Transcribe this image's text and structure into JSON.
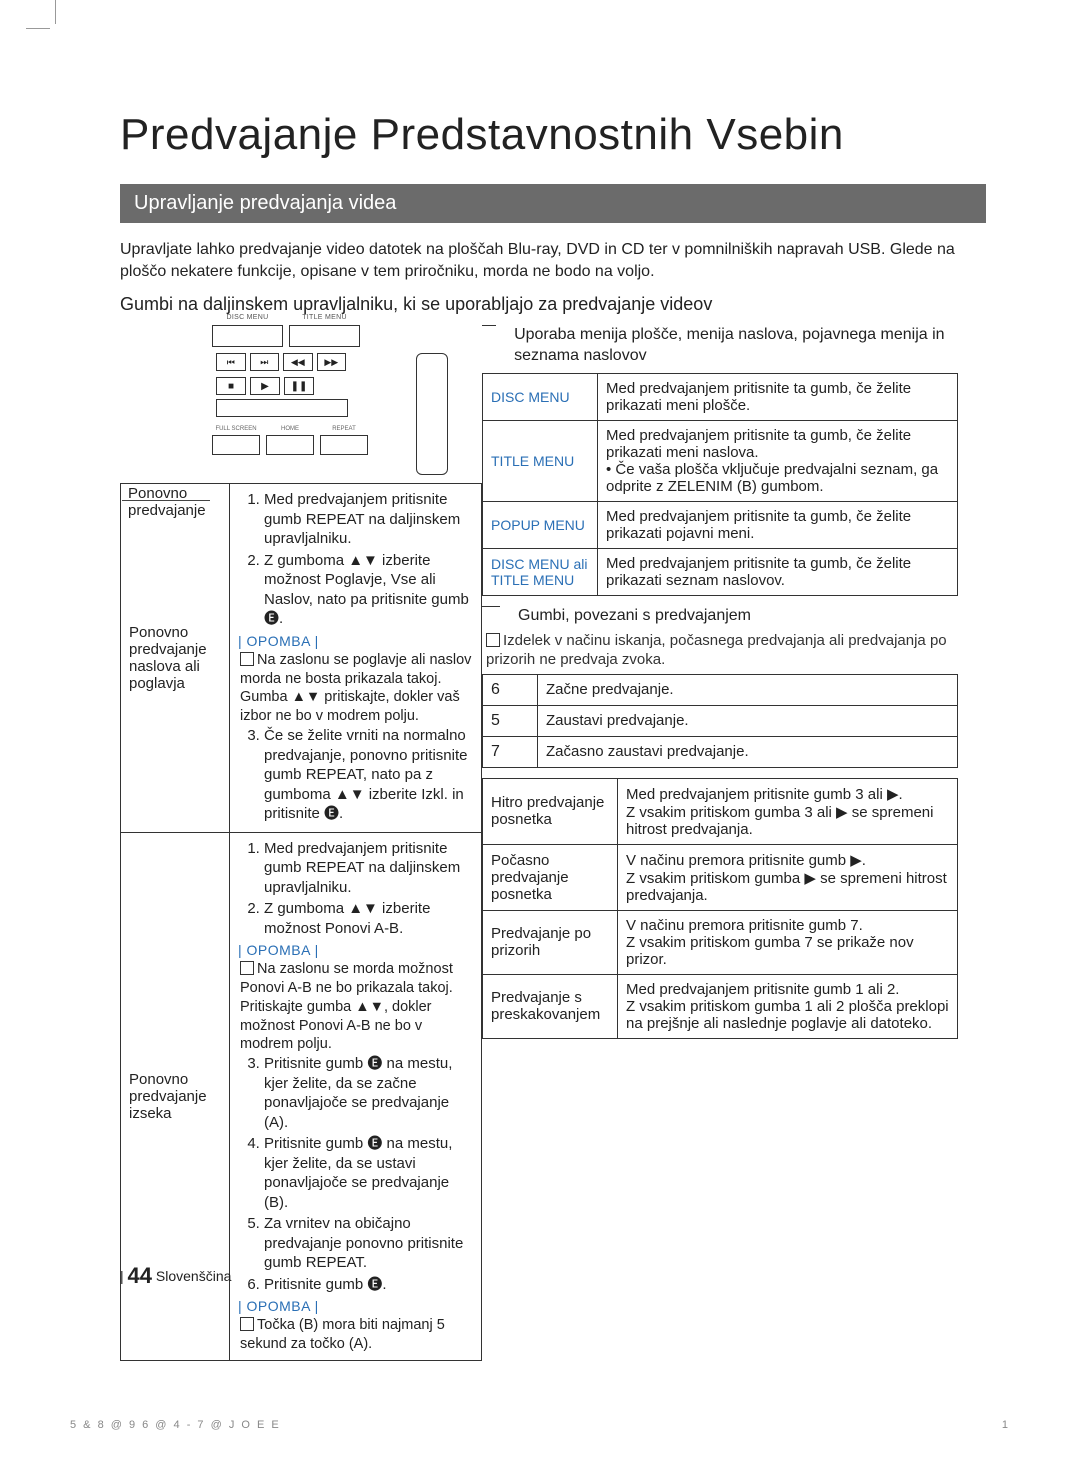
{
  "page": {
    "title": "Predvajanje Predstavnostnih Vsebin",
    "section_bar": "Upravljanje predvajanja videa",
    "intro": "Upravljate lahko predvajanje video datotek na ploščah Blu-ray, DVD in CD ter v pomnilniških napravah USB. Glede na ploščo nekatere funkcije, opisane v tem priročniku, morda ne bodo na voljo.",
    "subhead": "Gumbi na daljinskem upravljalniku, ki se uporabljajo za predvajanje videov"
  },
  "remote": {
    "side_label": "Ponovno predvajanje",
    "top_labels": {
      "disc": "DISC MENU",
      "title": "TITLE MENU"
    },
    "small_icons": [
      "⏮",
      "⏭",
      "◀◀",
      "▶▶"
    ],
    "play_icons": [
      "■",
      "▶",
      "❚❚"
    ],
    "middle_label": "",
    "func_top": [
      "FULL SCREEN",
      "HOME",
      "REPEAT"
    ]
  },
  "left_table": {
    "row1_label": "Ponovno predvajanje naslova ali poglavja",
    "row1_list": [
      "Med predvajanjem pritisnite gumb REPEAT na daljinskem upravljalniku.",
      "Z gumboma ▲▼ izberite možnost Poglavje, Vse ali Naslov, nato pa pritisnite gumb 🅔."
    ],
    "row1_note_label": "| OPOMBA |",
    "row1_note": "Na zaslonu se poglavje ali naslov morda ne bosta prikazala takoj. Gumba ▲▼ pritiskajte, dokler vaš izbor ne bo v modrem polju.",
    "row1_list2": [
      "Če se želite vrniti na normalno predvajanje, ponovno pritisnite gumb REPEAT, nato pa z gumboma ▲▼ izberite Izkl. in pritisnite 🅔."
    ],
    "row2_label": "Ponovno predvajanje izseka",
    "row2_list": [
      "Med predvajanjem pritisnite gumb REPEAT na daljinskem upravljalniku.",
      "Z gumboma ▲▼ izberite možnost Ponovi A-B."
    ],
    "row2_note_label": "| OPOMBA |",
    "row2_note": "Na zaslonu se morda možnost Ponovi A-B ne bo prikazala takoj. Pritiskajte gumba ▲▼, dokler možnost Ponovi A-B ne bo v modrem polju.",
    "row2_list2": [
      "Pritisnite gumb 🅔 na mestu, kjer želite, da se začne ponavljajoče se predvajanje (A).",
      "Pritisnite gumb 🅔 na mestu, kjer želite, da se ustavi ponavljajoče se predvajanje (B).",
      "Za vrnitev na običajno predvajanje ponovno pritisnite gumb REPEAT.",
      "Pritisnite gumb 🅔."
    ],
    "row2_note2_label": "| OPOMBA |",
    "row2_note2": "Točka (B) mora biti najmanj 5 sekund za točko (A)."
  },
  "right": {
    "head1": "Uporaba menija plošče, menija naslova, pojavnega menija in seznama naslovov",
    "t1": [
      {
        "k": "DISC MENU",
        "v": "Med predvajanjem pritisnite ta gumb, če želite prikazati meni plošče."
      },
      {
        "k": "TITLE MENU",
        "v": "Med predvajanjem pritisnite ta gumb, če želite prikazati meni naslova.\n• Če vaša plošča vključuje predvajalni seznam, ga odprite z ZELENIM (B) gumbom."
      },
      {
        "k": "POPUP MENU",
        "v": "Med predvajanjem pritisnite ta gumb, če želite prikazati pojavni meni."
      },
      {
        "k": "DISC MENU ali TITLE MENU",
        "v": "Med predvajanjem pritisnite ta gumb, če želite prikazati seznam naslovov."
      }
    ],
    "head2": "Gumbi, povezani s predvajanjem",
    "note2": "Izdelek v načinu iskanja, počasnega predvajanja ali predvajanja po prizorih ne predvaja zvoka.",
    "t2": [
      {
        "k": "6",
        "v": "Začne predvajanje."
      },
      {
        "k": "5",
        "v": "Zaustavi predvajanje."
      },
      {
        "k": "7",
        "v": "Začasno zaustavi predvajanje."
      }
    ],
    "t3": [
      {
        "k": "Hitro predvajanje posnetka",
        "v": "Med predvajanjem pritisnite gumb 3 ali ▶.\nZ vsakim pritiskom gumba 3 ali ▶ se spremeni hitrost predvajanja."
      },
      {
        "k": "Počasno predvajanje posnetka",
        "v": "V načinu premora pritisnite gumb ▶.\nZ vsakim pritiskom gumba ▶ se spremeni hitrost predvajanja."
      },
      {
        "k": "Predvajanje po prizorih",
        "v": "V načinu premora pritisnite gumb 7.\nZ vsakim pritiskom gumba 7 se prikaže nov prizor."
      },
      {
        "k": "Predvajanje s preskakovanjem",
        "v": "Med predvajanjem pritisnite gumb 1 ali 2.\nZ vsakim pritiskom gumba 1 ali 2 plošča preklopi na prejšnje ali naslednje poglavje ali datoteko."
      }
    ]
  },
  "footer": {
    "num": "44",
    "lang": "Slovenščina",
    "meta_left": "5  &    8 @ 9 6 @ 4 - 7 @      J O E E",
    "meta_right": "1"
  }
}
